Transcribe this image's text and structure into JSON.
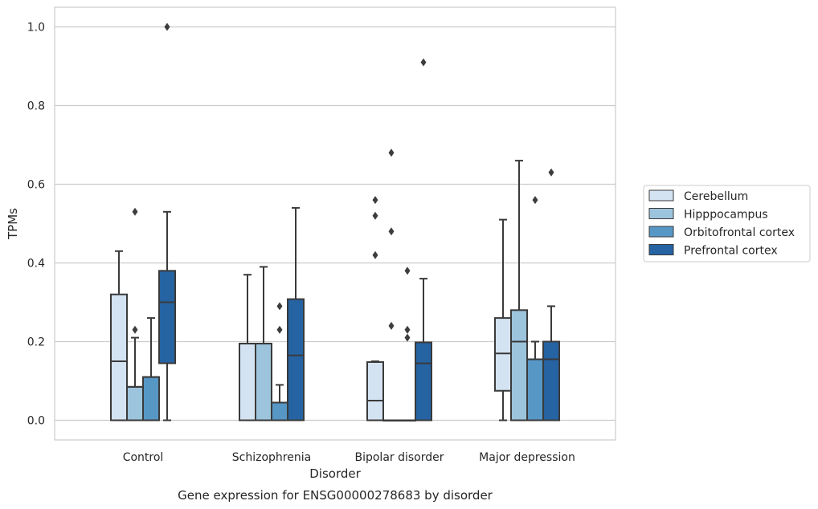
{
  "chart_data": {
    "type": "box",
    "title": "Gene expression for ENSG00000278683 by disorder",
    "xlabel": "Disorder",
    "ylabel": "TPMs",
    "ylim": [
      -0.05,
      1.05
    ],
    "yticks": [
      "0.0",
      "0.2",
      "0.4",
      "0.6",
      "0.8",
      "1.0"
    ],
    "grid": "horizontal",
    "legend_position": "right",
    "categories": [
      "Control",
      "Schizophrenia",
      "Bipolar disorder",
      "Major depression"
    ],
    "colors": [
      "#d4e3f1",
      "#9dc4dd",
      "#5797c6",
      "#2563a3"
    ],
    "series": [
      {
        "name": "Cerebellum",
        "boxes": [
          {
            "q1": 0.0,
            "median": 0.15,
            "q3": 0.32,
            "whislo": 0.0,
            "whishi": 0.43,
            "fliers": []
          },
          {
            "q1": 0.0,
            "median": 0.195,
            "q3": 0.195,
            "whislo": 0.0,
            "whishi": 0.37,
            "fliers": []
          },
          {
            "q1": 0.0,
            "median": 0.05,
            "q3": 0.148,
            "whislo": 0.0,
            "whishi": 0.15,
            "fliers": [
              0.42,
              0.52,
              0.56
            ]
          },
          {
            "q1": 0.075,
            "median": 0.17,
            "q3": 0.26,
            "whislo": 0.0,
            "whishi": 0.51,
            "fliers": []
          }
        ]
      },
      {
        "name": "Hipppocampus",
        "boxes": [
          {
            "q1": 0.0,
            "median": 0.085,
            "q3": 0.085,
            "whislo": 0.0,
            "whishi": 0.21,
            "fliers": [
              0.23,
              0.53
            ]
          },
          {
            "q1": 0.0,
            "median": 0.195,
            "q3": 0.195,
            "whislo": 0.0,
            "whishi": 0.39,
            "fliers": []
          },
          {
            "q1": 0.0,
            "median": 0.0,
            "q3": 0.0,
            "whislo": 0.0,
            "whishi": 0.0,
            "fliers": [
              0.24,
              0.48,
              0.68
            ]
          },
          {
            "q1": 0.0,
            "median": 0.2,
            "q3": 0.28,
            "whislo": 0.0,
            "whishi": 0.66,
            "fliers": []
          }
        ]
      },
      {
        "name": "Orbitofrontal cortex",
        "boxes": [
          {
            "q1": 0.0,
            "median": 0.11,
            "q3": 0.11,
            "whislo": 0.0,
            "whishi": 0.26,
            "fliers": []
          },
          {
            "q1": 0.0,
            "median": 0.045,
            "q3": 0.045,
            "whislo": 0.0,
            "whishi": 0.09,
            "fliers": [
              0.23,
              0.29
            ]
          },
          {
            "q1": 0.0,
            "median": 0.0,
            "q3": 0.0,
            "whislo": 0.0,
            "whishi": 0.0,
            "fliers": [
              0.21,
              0.23,
              0.38
            ]
          },
          {
            "q1": 0.0,
            "median": 0.155,
            "q3": 0.155,
            "whislo": 0.0,
            "whishi": 0.2,
            "fliers": [
              0.56
            ]
          }
        ]
      },
      {
        "name": "Prefrontal cortex",
        "boxes": [
          {
            "q1": 0.145,
            "median": 0.3,
            "q3": 0.38,
            "whislo": 0.0,
            "whishi": 0.53,
            "fliers": [
              1.0
            ]
          },
          {
            "q1": 0.0,
            "median": 0.165,
            "q3": 0.308,
            "whislo": 0.0,
            "whishi": 0.54,
            "fliers": []
          },
          {
            "q1": 0.0,
            "median": 0.145,
            "q3": 0.198,
            "whislo": 0.0,
            "whishi": 0.36,
            "fliers": [
              0.91
            ]
          },
          {
            "q1": 0.0,
            "median": 0.155,
            "q3": 0.2,
            "whislo": 0.0,
            "whishi": 0.29,
            "fliers": [
              0.63
            ]
          }
        ]
      }
    ]
  }
}
